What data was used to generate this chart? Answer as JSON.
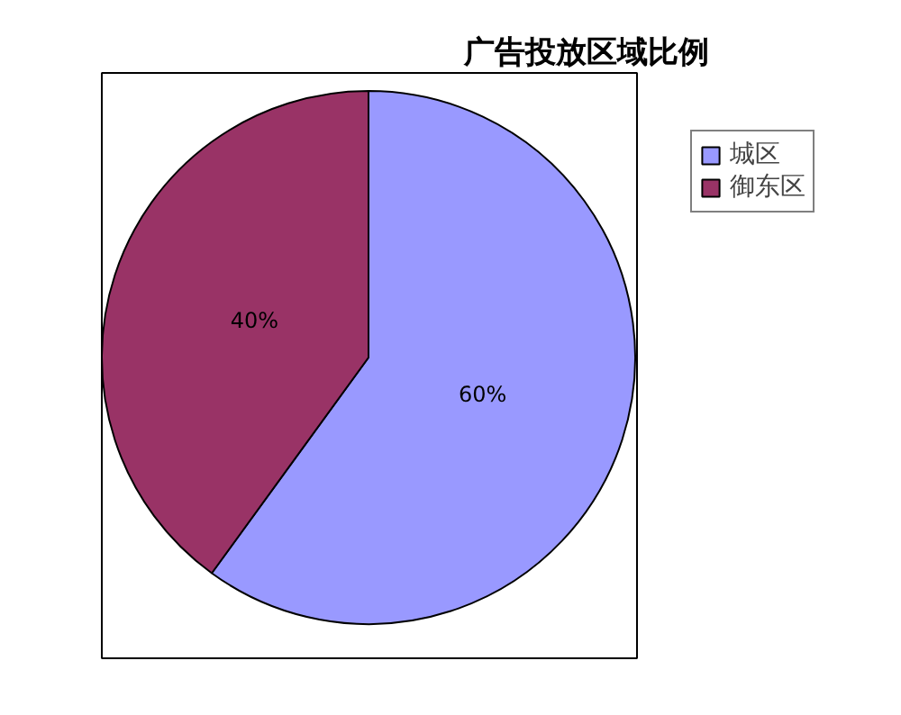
{
  "chart_data": {
    "type": "pie",
    "title": "广告投放区域比例",
    "categories": [
      "城区",
      "御东区"
    ],
    "values": [
      60,
      40
    ],
    "colors": [
      "#9999ff",
      "#993366"
    ],
    "value_labels": [
      "60%",
      "40%"
    ],
    "legend": "top right"
  }
}
